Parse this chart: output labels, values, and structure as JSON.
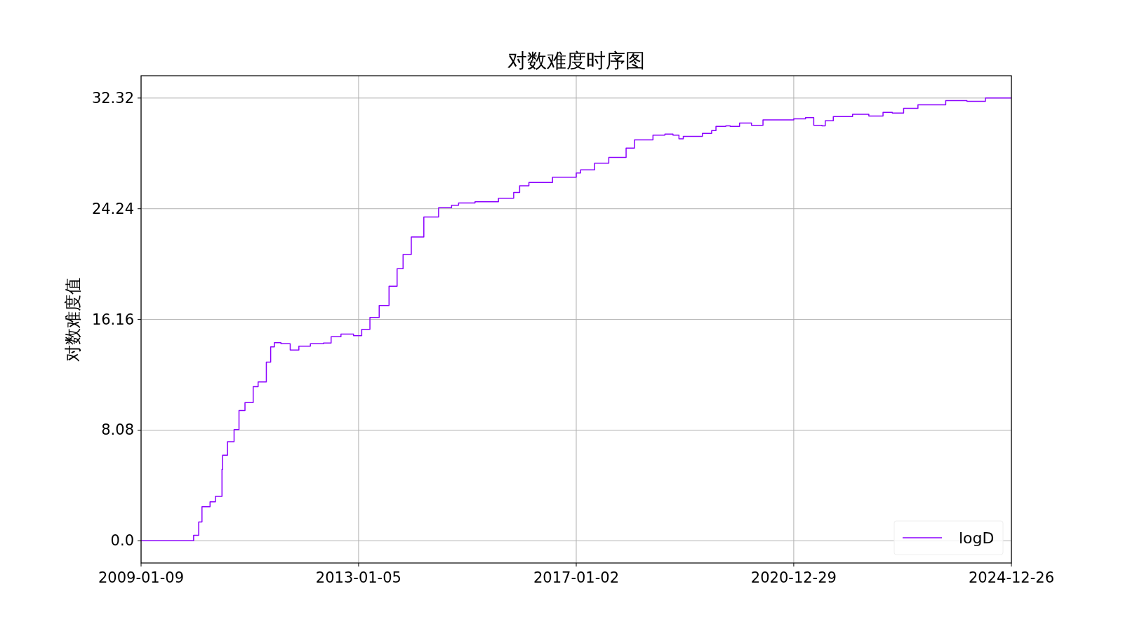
{
  "chart_data": {
    "type": "step",
    "title": "对数难度时序图",
    "ylabel": "对数难度值",
    "xlim": [
      "2009-01-09",
      "2024-12-26"
    ],
    "xticks": [
      "2009-01-09",
      "2013-01-05",
      "2017-01-02",
      "2020-12-29",
      "2024-12-26"
    ],
    "ylim": [
      -1.62,
      33.95
    ],
    "yticks": [
      {
        "value": 0,
        "label": "0.0"
      },
      8.08,
      16.16,
      24.24,
      32.32
    ],
    "grid": true,
    "legend": "bottom right",
    "x": [
      "2009-01-09",
      "2009-12-27",
      "2010-01-30",
      "2010-02-21",
      "2010-04-16",
      "2010-05-22",
      "2010-07-05",
      "2010-07-09",
      "2010-08-11",
      "2010-09-24",
      "2010-10-27",
      "2010-12-06",
      "2011-01-30",
      "2011-03-04",
      "2011-04-28",
      "2011-05-27",
      "2011-06-21",
      "2011-08-04",
      "2011-10-05",
      "2011-12-02",
      "2012-02-17",
      "2012-05-15",
      "2012-07-05",
      "2012-09-09",
      "2012-12-02",
      "2013-01-26",
      "2013-03-22",
      "2013-05-23",
      "2013-07-28",
      "2013-09-20",
      "2013-10-30",
      "2013-12-24",
      "2014-03-18",
      "2014-06-25",
      "2014-09-20",
      "2014-11-06",
      "2015-02-24",
      "2015-07-31",
      "2015-11-10",
      "2015-12-20",
      "2016-02-20",
      "2016-07-27",
      "2017-01-02",
      "2017-01-31",
      "2017-05-05",
      "2017-08-08",
      "2017-10-23",
      "2017-12-02",
      "2018-01-27",
      "2018-05-31",
      "2018-08-19",
      "2018-10-12",
      "2018-11-21",
      "2018-12-20",
      "2019-04-27",
      "2019-06-28",
      "2019-07-27",
      "2019-10-01",
      "2019-10-30",
      "2020-01-01",
      "2020-03-21",
      "2020-06-06",
      "2020-10-27",
      "2020-12-29",
      "2021-03-18",
      "2021-05-12",
      "2021-07-06",
      "2021-07-28",
      "2021-09-20",
      "2022-01-27",
      "2022-05-16",
      "2022-08-19",
      "2022-10-20",
      "2023-01-04",
      "2023-04-10",
      "2023-10-13",
      "2024-03-03",
      "2024-07-05",
      "2024-12-26"
    ],
    "series": [
      {
        "name": "logD",
        "color": "#8b00ff",
        "values": [
          0,
          0,
          0.4,
          1.37,
          2.49,
          2.84,
          3.24,
          5.21,
          6.25,
          7.23,
          8.12,
          9.51,
          10.09,
          11.25,
          11.6,
          13.04,
          14.16,
          14.46,
          14.39,
          13.93,
          14.21,
          14.39,
          14.44,
          14.9,
          15.09,
          14.98,
          15.43,
          16.3,
          17.18,
          18.58,
          19.86,
          20.9,
          22.18,
          23.64,
          24.32,
          24.5,
          24.66,
          24.75,
          25.01,
          25.43,
          25.91,
          26.16,
          26.54,
          26.85,
          27.08,
          27.56,
          27.99,
          27.99,
          28.67,
          29.27,
          29.61,
          29.69,
          29.61,
          29.35,
          29.52,
          29.74,
          29.95,
          30.25,
          30.29,
          30.25,
          30.5,
          30.33,
          30.72,
          30.72,
          30.8,
          30.89,
          30.33,
          30.29,
          30.66,
          30.97,
          31.14,
          31.01,
          31.28,
          31.23,
          31.57,
          31.82,
          32.13,
          32.08,
          32.33
        ]
      }
    ]
  }
}
